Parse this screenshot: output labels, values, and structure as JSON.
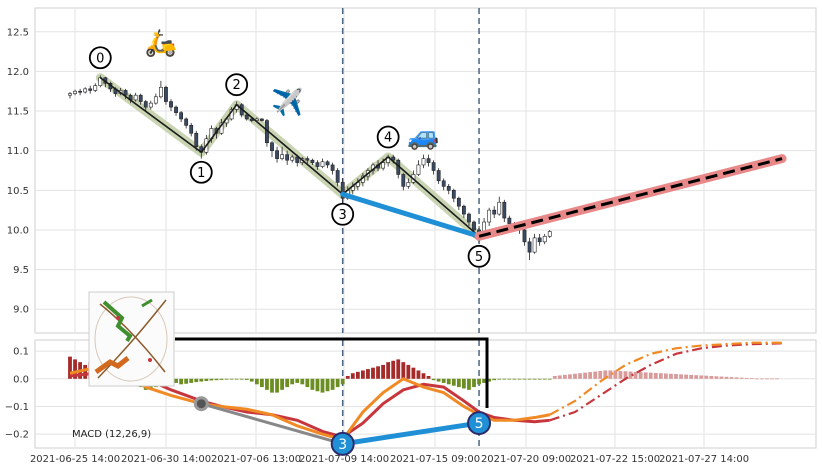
{
  "chart_data": [
    {
      "type": "candlestick",
      "panel": "price",
      "ylim": [
        8.7,
        12.8
      ],
      "y_ticks": [
        "9.0",
        "9.5",
        "10.0",
        "10.5",
        "11.0",
        "11.5",
        "12.0",
        "12.5"
      ],
      "x_ticks": [
        "2021-06-25 14:00",
        "2021-06-30 14:00",
        "2021-07-06 13:00",
        "2021-07-09 14:00",
        "2021-07-15 09:00",
        "2021-07-20 09:00",
        "2021-07-22 15:00",
        "2021-07-27 14:00"
      ],
      "grid": true,
      "candles": [
        [
          0,
          11.7,
          11.72,
          11.66,
          11.74
        ],
        [
          1,
          11.72,
          11.75,
          11.7,
          11.77
        ],
        [
          2,
          11.75,
          11.74,
          11.7,
          11.78
        ],
        [
          3,
          11.74,
          11.78,
          11.72,
          11.8
        ],
        [
          4,
          11.78,
          11.76,
          11.72,
          11.82
        ],
        [
          5,
          11.76,
          11.82,
          11.74,
          11.85
        ],
        [
          6,
          11.82,
          11.92,
          11.8,
          11.95
        ],
        [
          7,
          11.92,
          11.85,
          11.8,
          11.93
        ],
        [
          8,
          11.85,
          11.78,
          11.74,
          11.87
        ],
        [
          9,
          11.78,
          11.72,
          11.68,
          11.8
        ],
        [
          10,
          11.72,
          11.76,
          11.7,
          11.79
        ],
        [
          11,
          11.76,
          11.7,
          11.65,
          11.78
        ],
        [
          12,
          11.7,
          11.64,
          11.6,
          11.72
        ],
        [
          13,
          11.64,
          11.7,
          11.62,
          11.73
        ],
        [
          14,
          11.7,
          11.62,
          11.58,
          11.72
        ],
        [
          15,
          11.62,
          11.55,
          11.5,
          11.64
        ],
        [
          16,
          11.55,
          11.6,
          11.52,
          11.63
        ],
        [
          17,
          11.6,
          11.68,
          11.58,
          11.72
        ],
        [
          18,
          11.68,
          11.8,
          11.66,
          11.88
        ],
        [
          19,
          11.8,
          11.62,
          11.58,
          11.82
        ],
        [
          20,
          11.62,
          11.55,
          11.5,
          11.65
        ],
        [
          21,
          11.55,
          11.48,
          11.44,
          11.57
        ],
        [
          22,
          11.48,
          11.4,
          11.36,
          11.5
        ],
        [
          23,
          11.4,
          11.32,
          11.28,
          11.42
        ],
        [
          24,
          11.32,
          11.22,
          11.18,
          11.35
        ],
        [
          25,
          11.22,
          11.05,
          11.0,
          11.25
        ],
        [
          26,
          11.05,
          10.98,
          10.9,
          11.08
        ],
        [
          27,
          10.98,
          11.15,
          10.95,
          11.2
        ],
        [
          28,
          11.15,
          11.28,
          11.1,
          11.32
        ],
        [
          29,
          11.28,
          11.22,
          11.15,
          11.3
        ],
        [
          30,
          11.22,
          11.35,
          11.2,
          11.4
        ],
        [
          31,
          11.35,
          11.4,
          11.3,
          11.42
        ],
        [
          32,
          11.4,
          11.52,
          11.38,
          11.55
        ],
        [
          33,
          11.52,
          11.58,
          11.48,
          11.62
        ],
        [
          34,
          11.58,
          11.45,
          11.42,
          11.6
        ],
        [
          35,
          11.45,
          11.4,
          11.38,
          11.48
        ],
        [
          36,
          11.4,
          11.38,
          11.36,
          11.42
        ],
        [
          37,
          11.38,
          11.4,
          11.36,
          11.42
        ],
        [
          38,
          11.4,
          11.38,
          11.37,
          11.41
        ],
        [
          39,
          11.38,
          11.1,
          11.05,
          11.4
        ],
        [
          40,
          11.1,
          11.0,
          10.92,
          11.12
        ],
        [
          41,
          11.0,
          10.9,
          10.85,
          11.05
        ],
        [
          42,
          10.9,
          10.95,
          10.88,
          11.05
        ],
        [
          43,
          10.95,
          10.88,
          10.82,
          11.0
        ],
        [
          44,
          10.88,
          10.92,
          10.85,
          10.95
        ],
        [
          45,
          10.92,
          10.85,
          10.8,
          10.95
        ],
        [
          46,
          10.85,
          10.9,
          10.82,
          10.92
        ],
        [
          47,
          10.9,
          10.88,
          10.84,
          10.93
        ],
        [
          48,
          10.88,
          10.85,
          10.82,
          10.9
        ],
        [
          49,
          10.85,
          10.8,
          10.76,
          10.88
        ],
        [
          50,
          10.8,
          10.86,
          10.78,
          10.9
        ],
        [
          51,
          10.86,
          10.82,
          10.78,
          10.88
        ],
        [
          52,
          10.82,
          10.75,
          10.7,
          10.85
        ],
        [
          53,
          10.75,
          10.6,
          10.55,
          10.78
        ],
        [
          54,
          10.6,
          10.4,
          10.3,
          10.65
        ],
        [
          55,
          10.4,
          10.5,
          10.38,
          10.55
        ],
        [
          56,
          10.5,
          10.55,
          10.45,
          10.6
        ],
        [
          57,
          10.55,
          10.6,
          10.5,
          10.65
        ],
        [
          58,
          10.6,
          10.68,
          10.55,
          10.72
        ],
        [
          59,
          10.68,
          10.75,
          10.62,
          10.78
        ],
        [
          60,
          10.75,
          10.82,
          10.7,
          10.85
        ],
        [
          61,
          10.82,
          10.78,
          10.74,
          10.88
        ],
        [
          62,
          10.78,
          10.85,
          10.75,
          10.9
        ],
        [
          63,
          10.85,
          10.92,
          10.8,
          10.95
        ],
        [
          64,
          10.92,
          10.88,
          10.84,
          10.95
        ],
        [
          65,
          10.88,
          10.7,
          10.65,
          10.9
        ],
        [
          66,
          10.7,
          10.55,
          10.5,
          10.72
        ],
        [
          67,
          10.55,
          10.6,
          10.52,
          10.65
        ],
        [
          68,
          10.6,
          10.7,
          10.58,
          10.75
        ],
        [
          69,
          10.7,
          10.82,
          10.68,
          10.88
        ],
        [
          70,
          10.82,
          10.9,
          10.78,
          10.95
        ],
        [
          71,
          10.9,
          10.85,
          10.8,
          10.95
        ],
        [
          72,
          10.85,
          10.75,
          10.7,
          10.88
        ],
        [
          73,
          10.75,
          10.62,
          10.58,
          10.78
        ],
        [
          74,
          10.62,
          10.55,
          10.5,
          10.65
        ],
        [
          75,
          10.55,
          10.5,
          10.45,
          10.58
        ],
        [
          76,
          10.5,
          10.4,
          10.35,
          10.52
        ],
        [
          77,
          10.4,
          10.3,
          10.25,
          10.42
        ],
        [
          78,
          10.3,
          10.2,
          10.15,
          10.32
        ],
        [
          79,
          10.2,
          10.1,
          10.05,
          10.22
        ],
        [
          80,
          10.1,
          10.0,
          9.9,
          10.12
        ],
        [
          81,
          10.0,
          9.92,
          9.85,
          10.05
        ],
        [
          82,
          9.92,
          10.1,
          9.9,
          10.15
        ],
        [
          83,
          10.1,
          10.25,
          10.05,
          10.28
        ],
        [
          84,
          10.25,
          10.2,
          10.15,
          10.3
        ],
        [
          85,
          10.2,
          10.35,
          10.18,
          10.42
        ],
        [
          86,
          10.35,
          10.15,
          10.1,
          10.38
        ],
        [
          87,
          10.15,
          10.08,
          10.02,
          10.18
        ],
        [
          88,
          10.08,
          10.05,
          10.0,
          10.1
        ],
        [
          89,
          10.05,
          10.0,
          9.95,
          10.08
        ],
        [
          90,
          10.0,
          9.85,
          9.8,
          10.02
        ],
        [
          91,
          9.85,
          9.72,
          9.62,
          9.9
        ],
        [
          92,
          9.72,
          9.9,
          9.7,
          9.95
        ],
        [
          93,
          9.9,
          9.85,
          9.8,
          9.95
        ],
        [
          94,
          9.85,
          9.92,
          9.82,
          9.95
        ],
        [
          95,
          9.92,
          9.98,
          9.9,
          10.0
        ]
      ],
      "zigzag": [
        {
          "label": "0",
          "x": 6,
          "y": 11.92
        },
        {
          "label": "1",
          "x": 26,
          "y": 10.98
        },
        {
          "label": "2",
          "x": 33,
          "y": 11.58
        },
        {
          "label": "3",
          "x": 54,
          "y": 10.45
        },
        {
          "label": "4",
          "x": 63,
          "y": 10.92
        },
        {
          "label": "5",
          "x": 81,
          "y": 9.92
        }
      ],
      "forecast": {
        "from": [
          81,
          9.92
        ],
        "to": [
          141,
          10.9
        ]
      },
      "divergence_line": {
        "from": [
          54,
          10.45
        ],
        "to": [
          81,
          9.92
        ],
        "color": "#1f8fd6"
      },
      "emoji_annotations": [
        {
          "icon": "🛵",
          "x": 18,
          "y": 12.25
        },
        {
          "icon": "✈️",
          "x": 43,
          "y": 11.5
        },
        {
          "icon": "🚙",
          "x": 70,
          "y": 11.08
        }
      ],
      "vertical_markers": [
        54,
        81
      ]
    },
    {
      "type": "macd",
      "panel": "indicator",
      "label": "MACD (12,26,9)",
      "ylim": [
        -0.25,
        0.14
      ],
      "y_ticks": [
        "0.1",
        "0.0",
        "−0.1",
        "−0.2"
      ],
      "histogram": [
        0.08,
        0.07,
        0.06,
        0.05,
        0.06,
        0.07,
        0.06,
        0.04,
        0.02,
        0.01,
        -0.005,
        -0.01,
        -0.015,
        -0.02,
        -0.03,
        -0.04,
        -0.035,
        -0.03,
        -0.02,
        -0.01,
        -0.01,
        -0.015,
        -0.02,
        -0.018,
        -0.015,
        -0.012,
        -0.01,
        -0.008,
        -0.006,
        -0.005,
        -0.004,
        -0.003,
        -0.002,
        -0.002,
        -0.003,
        -0.004,
        -0.01,
        -0.02,
        -0.03,
        -0.04,
        -0.05,
        -0.05,
        -0.04,
        -0.03,
        -0.02,
        -0.015,
        -0.02,
        -0.03,
        -0.04,
        -0.045,
        -0.05,
        -0.045,
        -0.04,
        -0.03,
        -0.02,
        0.01,
        0.02,
        0.025,
        0.03,
        0.035,
        0.04,
        0.045,
        0.05,
        0.06,
        0.065,
        0.07,
        0.06,
        0.05,
        0.04,
        0.03,
        0.02,
        0.01,
        -0.005,
        -0.01,
        -0.015,
        -0.02,
        -0.025,
        -0.03,
        -0.035,
        -0.04,
        -0.03,
        -0.02,
        -0.015,
        -0.01,
        -0.005,
        -0.003,
        -0.002,
        -0.002,
        -0.002,
        -0.002,
        -0.002,
        -0.001,
        -0.001,
        -0.001,
        -0.001,
        -0.001,
        0.01,
        0.012,
        0.014,
        0.016,
        0.018,
        0.02,
        0.022,
        0.024,
        0.026,
        0.028,
        0.03,
        0.03,
        0.03,
        0.028,
        0.027,
        0.026,
        0.025,
        0.024,
        0.023,
        0.022,
        0.021,
        0.02,
        0.019,
        0.018,
        0.017,
        0.016,
        0.015,
        0.014,
        0.013,
        0.012,
        0.011,
        0.01,
        0.009,
        0.008,
        0.007,
        0.006,
        0.005,
        0.004,
        0.003,
        0.002,
        0.001,
        0.001,
        0.001,
        0.001,
        0.001
      ],
      "macd_line": [
        [
          0,
          0.02
        ],
        [
          5,
          0.04
        ],
        [
          10,
          0.02
        ],
        [
          15,
          -0.03
        ],
        [
          20,
          -0.06
        ],
        [
          26,
          -0.09
        ],
        [
          30,
          -0.1
        ],
        [
          35,
          -0.11
        ],
        [
          40,
          -0.13
        ],
        [
          45,
          -0.17
        ],
        [
          50,
          -0.2
        ],
        [
          54,
          -0.22
        ],
        [
          58,
          -0.12
        ],
        [
          62,
          -0.05
        ],
        [
          66,
          0.0
        ],
        [
          70,
          -0.03
        ],
        [
          74,
          -0.05
        ],
        [
          78,
          -0.1
        ],
        [
          81,
          -0.13
        ],
        [
          84,
          -0.15
        ],
        [
          88,
          -0.15
        ],
        [
          92,
          -0.14
        ],
        [
          95,
          -0.13
        ]
      ],
      "signal_line": [
        [
          0,
          0.01
        ],
        [
          5,
          0.02
        ],
        [
          10,
          0.03
        ],
        [
          15,
          0.0
        ],
        [
          20,
          -0.04
        ],
        [
          26,
          -0.08
        ],
        [
          30,
          -0.1
        ],
        [
          35,
          -0.12
        ],
        [
          40,
          -0.13
        ],
        [
          45,
          -0.15
        ],
        [
          50,
          -0.19
        ],
        [
          54,
          -0.21
        ],
        [
          58,
          -0.16
        ],
        [
          62,
          -0.09
        ],
        [
          66,
          -0.04
        ],
        [
          70,
          -0.02
        ],
        [
          74,
          -0.03
        ],
        [
          78,
          -0.08
        ],
        [
          81,
          -0.12
        ],
        [
          84,
          -0.14
        ],
        [
          88,
          -0.15
        ],
        [
          92,
          -0.155
        ],
        [
          95,
          -0.15
        ]
      ],
      "macd_forecast": [
        [
          95,
          -0.13
        ],
        [
          100,
          -0.08
        ],
        [
          105,
          -0.01
        ],
        [
          110,
          0.05
        ],
        [
          115,
          0.09
        ],
        [
          120,
          0.11
        ],
        [
          125,
          0.12
        ],
        [
          130,
          0.125
        ],
        [
          135,
          0.13
        ],
        [
          141,
          0.13
        ]
      ],
      "signal_forecast": [
        [
          95,
          -0.15
        ],
        [
          100,
          -0.12
        ],
        [
          105,
          -0.06
        ],
        [
          110,
          0.0
        ],
        [
          115,
          0.05
        ],
        [
          120,
          0.09
        ],
        [
          125,
          0.11
        ],
        [
          130,
          0.12
        ],
        [
          135,
          0.125
        ],
        [
          141,
          0.128
        ]
      ],
      "divergence_points": [
        {
          "label": "3",
          "x": 54,
          "y": -0.235
        },
        {
          "label": "5",
          "x": 81,
          "y": -0.16
        }
      ],
      "grey_line": {
        "from": [
          26,
          -0.09
        ],
        "to": [
          54,
          -0.235
        ]
      }
    }
  ],
  "colors": {
    "candle_up": "#ffffff",
    "candle_down": "#3b4a63",
    "zigzag_halo": "#c9d4b2",
    "forecast_halo": "#e88888",
    "divergence": "#1f8fd6",
    "macd": "#f08a24",
    "signal": "#c8363d",
    "hist_neg": "#6b8e23",
    "hist_pos": "#a52a2a",
    "hist_forecast": "#d99a9a"
  },
  "icons": {
    "inset_logo": "plant-inset-icon"
  }
}
